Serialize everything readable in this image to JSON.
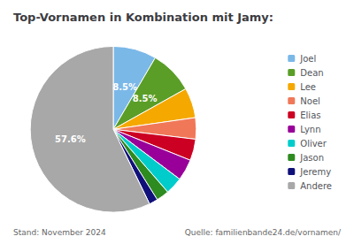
{
  "chart_data": {
    "type": "pie",
    "title": "Top-Vornamen in Kombination mit Jamy:",
    "categories": [
      "Joel",
      "Dean",
      "Lee",
      "Noel",
      "Elias",
      "Lynn",
      "Oliver",
      "Jason",
      "Jeremy",
      "Andere"
    ],
    "values": [
      8.5,
      8.5,
      5.9,
      4.2,
      4.2,
      4.2,
      3.4,
      2.5,
      1.7,
      57.6
    ],
    "value_labels": [
      "8.5%",
      "8.5%",
      null,
      null,
      null,
      null,
      null,
      null,
      null,
      "57.6%"
    ],
    "colors": [
      "#7ab8e8",
      "#5a9e28",
      "#f5a800",
      "#f07858",
      "#cc0022",
      "#990099",
      "#00cccc",
      "#2e8b20",
      "#10107a",
      "#a8a8a8"
    ],
    "legend": "right",
    "annotations": [
      "Stand: November 2024",
      "Quelle: familienbande24.de/vornamen/"
    ]
  }
}
